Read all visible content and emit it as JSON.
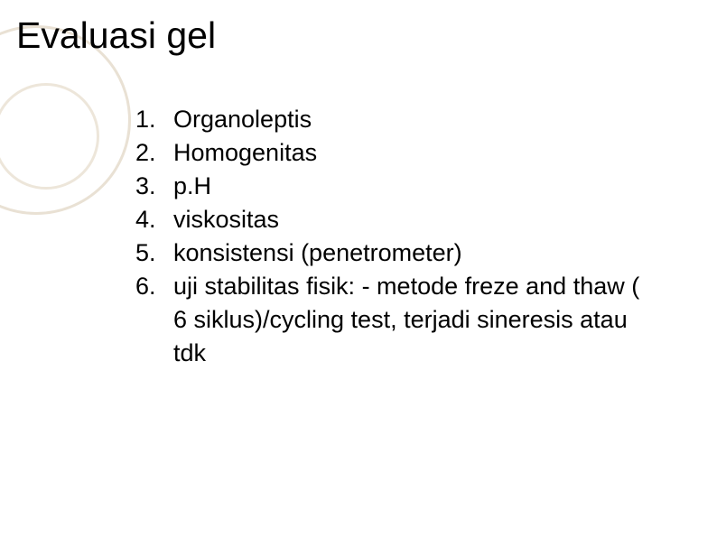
{
  "slide": {
    "title": "Evaluasi gel",
    "title_fontsize": 41,
    "title_color": "#000000",
    "list_fontsize": 27,
    "list_color": "#000000",
    "list_lineheight": 37,
    "items": [
      "Organoleptis",
      "Homogenitas",
      "p.H",
      "viskositas",
      "konsistensi (penetrometer)",
      "uji stabilitas fisik: - metode freze and thaw ( 6 siklus)/cycling test, terjadi sineresis atau tdk"
    ],
    "background_color": "#ffffff",
    "decor": {
      "outer_border_color": "#e9e1d4",
      "outer_border_width": 3,
      "inner_border_color": "#ede6da",
      "inner_border_width": 3
    }
  }
}
